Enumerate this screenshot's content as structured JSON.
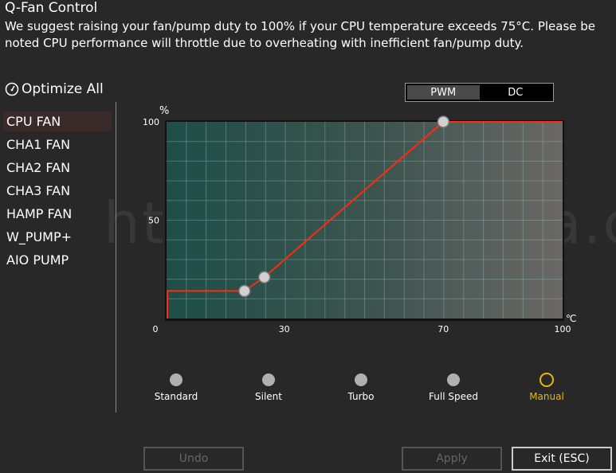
{
  "header": {
    "title": "Q-Fan Control",
    "description": "We suggest raising your fan/pump duty to 100% if your CPU temperature exceeds 75°C. Please be noted CPU performance will throttle due to overheating with inefficient fan/pump duty."
  },
  "optimize_all": {
    "label": "Optimize All",
    "icon": "gauge-icon"
  },
  "fans": [
    {
      "label": "CPU FAN",
      "selected": true
    },
    {
      "label": "CHA1 FAN"
    },
    {
      "label": "CHA2 FAN"
    },
    {
      "label": "CHA3 FAN"
    },
    {
      "label": "HAMP FAN"
    },
    {
      "label": "W_PUMP+"
    },
    {
      "label": "AIO PUMP"
    }
  ],
  "mode": {
    "options": [
      "PWM",
      "DC"
    ],
    "selected": "PWM"
  },
  "chart_data": {
    "type": "line",
    "ylabel": "%",
    "xlabel": "℃",
    "xlim": [
      0,
      100
    ],
    "ylim": [
      0,
      100
    ],
    "xticks": [
      "0",
      "30",
      "70",
      "100"
    ],
    "yticks": [
      "100",
      "50"
    ],
    "grid": true,
    "points": [
      [
        20,
        14
      ],
      [
        25,
        21
      ],
      [
        70,
        100
      ]
    ],
    "line_color": "#ff2a10"
  },
  "presets": {
    "items": [
      "Standard",
      "Silent",
      "Turbo",
      "Full Speed",
      "Manual"
    ],
    "selected": "Manual",
    "selected_color": "#e8b800"
  },
  "buttons": {
    "undo": "Undo",
    "apply": "Apply",
    "exit": "Exit (ESC)"
  },
  "watermark": "https://dannyda.com"
}
